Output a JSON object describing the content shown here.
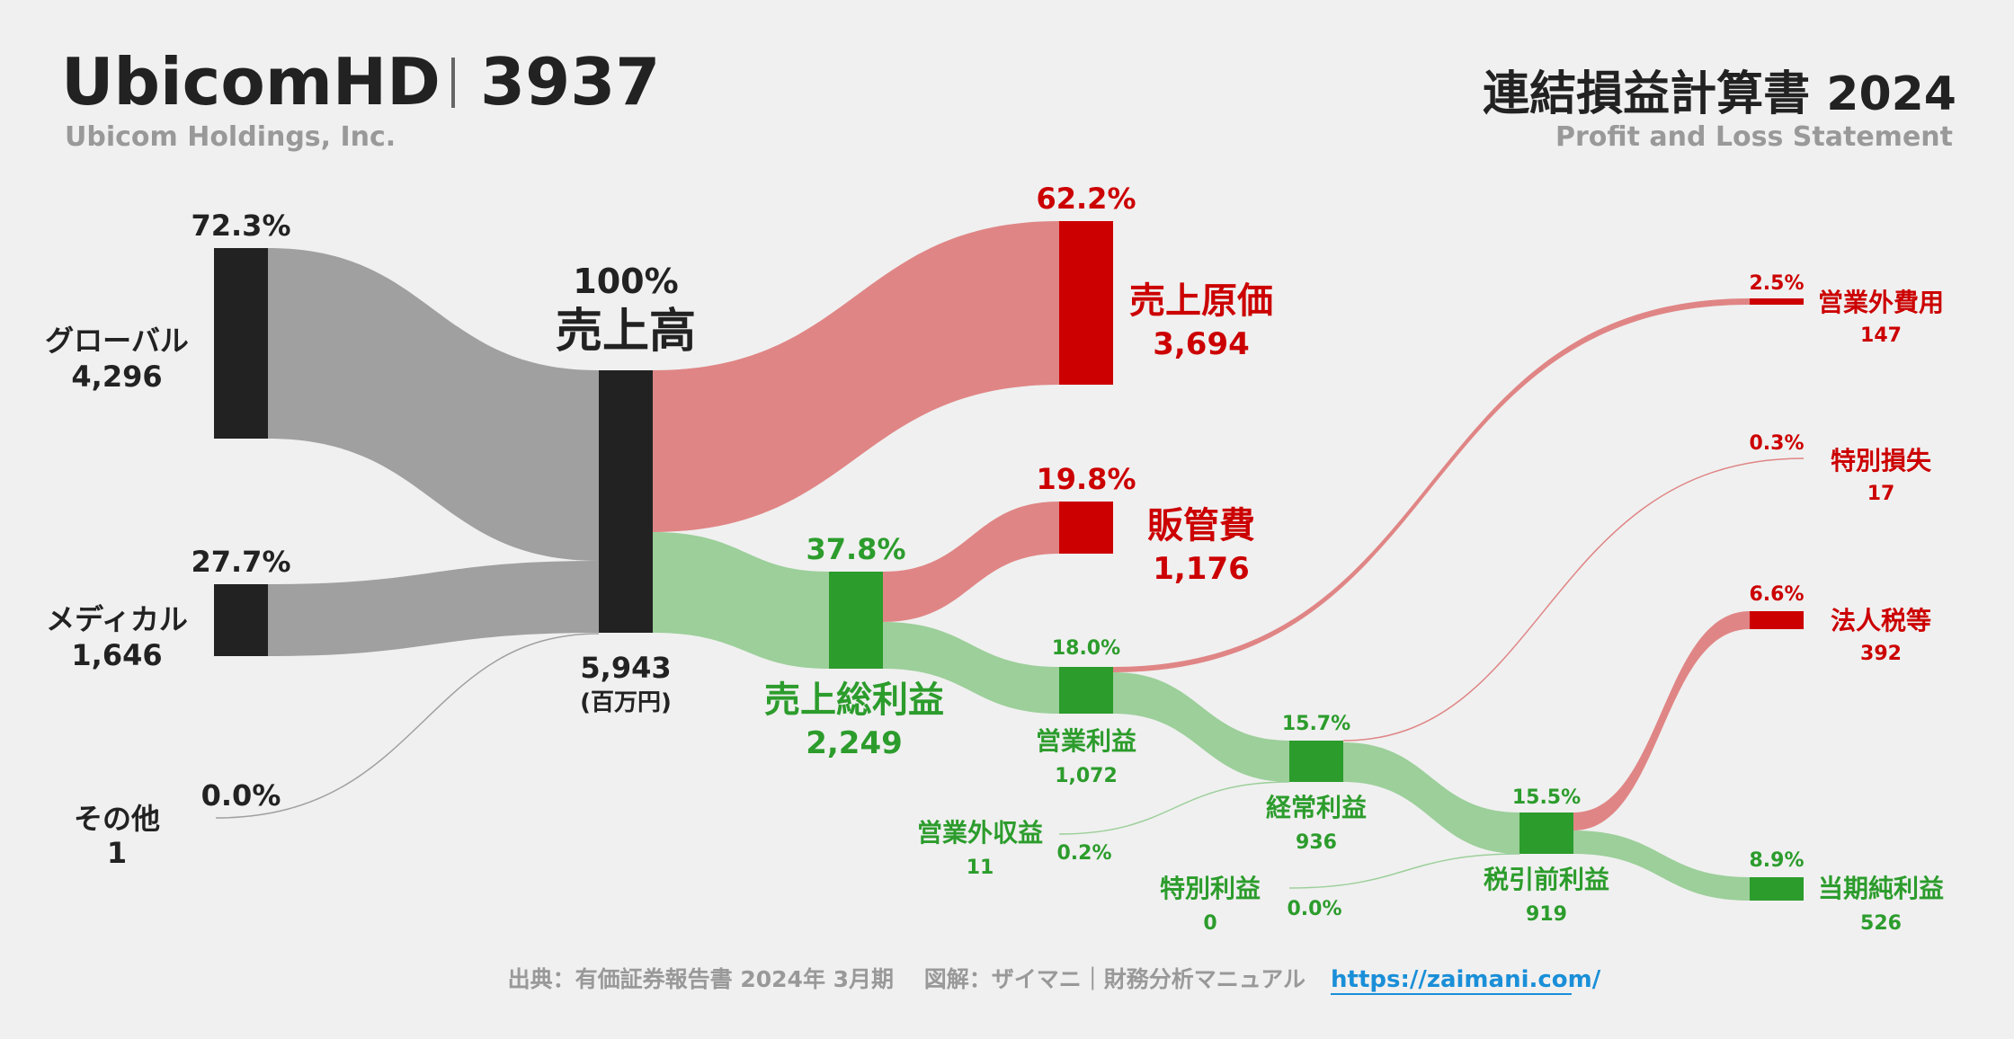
{
  "header": {
    "company": "UbicomHD",
    "code": "3937",
    "company_en": "Ubicom Holdings, Inc.",
    "title": "連結損益計算書 2024",
    "title_en": "Profit and Loss Statement"
  },
  "colors": {
    "dark": "#222222",
    "gray_flow": "#a0a0a0",
    "red": "#cc0000",
    "red_flow": "#e08585",
    "green": "#2c9c2c",
    "green_flow": "#9ccf9a"
  },
  "segments": [
    {
      "name": "グローバル",
      "value": "4,296",
      "pct": "72.3%"
    },
    {
      "name": "メディカル",
      "value": "1,646",
      "pct": "27.7%"
    },
    {
      "name": "その他",
      "value": "1",
      "pct": "0.0%"
    }
  ],
  "revenue": {
    "pct": "100%",
    "label": "売上高",
    "value": "5,943",
    "unit": "(百万円)"
  },
  "cost_of_sales": {
    "pct": "62.2%",
    "label": "売上原価",
    "value": "3,694"
  },
  "sga": {
    "pct": "19.8%",
    "label": "販管費",
    "value": "1,176"
  },
  "gross_profit": {
    "pct": "37.8%",
    "label": "売上総利益",
    "value": "2,249"
  },
  "operating_profit": {
    "pct": "18.0%",
    "label": "営業利益",
    "value": "1,072"
  },
  "non_op_income": {
    "pct": "0.2%",
    "label": "営業外収益",
    "value": "11"
  },
  "non_op_expense": {
    "pct": "2.5%",
    "label": "営業外費用",
    "value": "147"
  },
  "ordinary_profit": {
    "pct": "15.7%",
    "label": "経常利益",
    "value": "936"
  },
  "extraordinary_loss": {
    "pct": "0.3%",
    "label": "特別損失",
    "value": "17"
  },
  "extraordinary_income": {
    "pct": "0.0%",
    "label": "特別利益",
    "value": "0"
  },
  "pretax_profit": {
    "pct": "15.5%",
    "label": "税引前利益",
    "value": "919"
  },
  "income_tax": {
    "pct": "6.6%",
    "label": "法人税等",
    "value": "392"
  },
  "net_income": {
    "pct": "8.9%",
    "label": "当期純利益",
    "value": "526"
  },
  "footer": {
    "source": "出典：有価証券報告書 2024年 3月期　 図解：ザイマニ｜財務分析マニュアル",
    "url": "https://zaimani.com/"
  }
}
